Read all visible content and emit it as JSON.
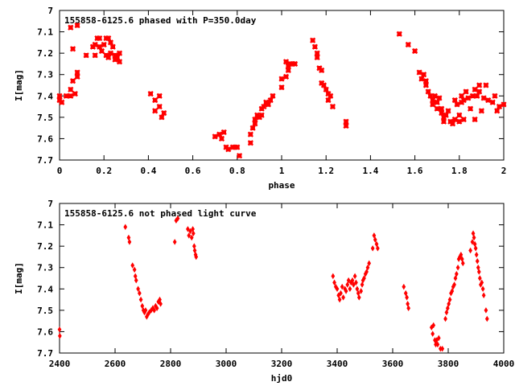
{
  "chart_data": [
    {
      "type": "scatter",
      "title": "155858-6125.6 phased with P=350.0day",
      "xlabel": "phase",
      "ylabel": "I[mag]",
      "xlim": [
        0,
        2
      ],
      "ylim": [
        7,
        7.7
      ],
      "y_inverted": true,
      "grid": false,
      "x_ticks": [
        "0",
        "0.2",
        "0.4",
        "0.6",
        "0.8",
        "1",
        "1.2",
        "1.4",
        "1.6",
        "1.8",
        "2"
      ],
      "y_ticks": [
        "7",
        "7.1",
        "7.2",
        "7.3",
        "7.4",
        "7.5",
        "7.6",
        "7.7"
      ],
      "marker_color": "#ff0000",
      "marker": "x",
      "points": [
        [
          0.0,
          7.42
        ],
        [
          0.0,
          7.4
        ],
        [
          0.01,
          7.43
        ],
        [
          0.03,
          7.4
        ],
        [
          0.05,
          7.37
        ],
        [
          0.05,
          7.4
        ],
        [
          0.05,
          7.08
        ],
        [
          0.06,
          7.18
        ],
        [
          0.06,
          7.33
        ],
        [
          0.07,
          7.39
        ],
        [
          0.08,
          7.07
        ],
        [
          0.08,
          7.29
        ],
        [
          0.08,
          7.31
        ],
        [
          0.12,
          7.21
        ],
        [
          0.15,
          7.17
        ],
        [
          0.16,
          7.16
        ],
        [
          0.16,
          7.21
        ],
        [
          0.17,
          7.13
        ],
        [
          0.18,
          7.13
        ],
        [
          0.18,
          7.17
        ],
        [
          0.19,
          7.19
        ],
        [
          0.2,
          7.16
        ],
        [
          0.21,
          7.13
        ],
        [
          0.21,
          7.21
        ],
        [
          0.22,
          7.13
        ],
        [
          0.22,
          7.22
        ],
        [
          0.23,
          7.15
        ],
        [
          0.23,
          7.2
        ],
        [
          0.24,
          7.17
        ],
        [
          0.25,
          7.21
        ],
        [
          0.25,
          7.23
        ],
        [
          0.26,
          7.22
        ],
        [
          0.27,
          7.2
        ],
        [
          0.27,
          7.24
        ],
        [
          0.41,
          7.39
        ],
        [
          0.43,
          7.42
        ],
        [
          0.43,
          7.47
        ],
        [
          0.45,
          7.4
        ],
        [
          0.45,
          7.45
        ],
        [
          0.46,
          7.5
        ],
        [
          0.47,
          7.48
        ],
        [
          0.7,
          7.59
        ],
        [
          0.72,
          7.58
        ],
        [
          0.73,
          7.6
        ],
        [
          0.74,
          7.57
        ],
        [
          0.75,
          7.64
        ],
        [
          0.76,
          7.65
        ],
        [
          0.78,
          7.64
        ],
        [
          0.79,
          7.64
        ],
        [
          0.8,
          7.64
        ],
        [
          0.81,
          7.68
        ],
        [
          0.86,
          7.62
        ],
        [
          0.86,
          7.58
        ],
        [
          0.87,
          7.55
        ],
        [
          0.88,
          7.51
        ],
        [
          0.88,
          7.53
        ],
        [
          0.89,
          7.49
        ],
        [
          0.9,
          7.5
        ],
        [
          0.91,
          7.49
        ],
        [
          0.91,
          7.46
        ],
        [
          0.92,
          7.45
        ],
        [
          0.93,
          7.43
        ],
        [
          0.94,
          7.44
        ],
        [
          0.95,
          7.42
        ],
        [
          0.96,
          7.4
        ],
        [
          1.0,
          7.32
        ],
        [
          1.0,
          7.36
        ],
        [
          1.02,
          7.31
        ],
        [
          1.02,
          7.24
        ],
        [
          1.03,
          7.26
        ],
        [
          1.03,
          7.28
        ],
        [
          1.04,
          7.25
        ],
        [
          1.05,
          7.25
        ],
        [
          1.06,
          7.25
        ],
        [
          1.14,
          7.14
        ],
        [
          1.15,
          7.17
        ],
        [
          1.16,
          7.2
        ],
        [
          1.16,
          7.22
        ],
        [
          1.17,
          7.27
        ],
        [
          1.18,
          7.28
        ],
        [
          1.18,
          7.34
        ],
        [
          1.19,
          7.35
        ],
        [
          1.2,
          7.37
        ],
        [
          1.21,
          7.39
        ],
        [
          1.21,
          7.42
        ],
        [
          1.22,
          7.4
        ],
        [
          1.23,
          7.45
        ],
        [
          1.29,
          7.52
        ],
        [
          1.29,
          7.54
        ],
        [
          1.53,
          7.11
        ],
        [
          1.57,
          7.16
        ],
        [
          1.6,
          7.19
        ],
        [
          1.62,
          7.29
        ],
        [
          1.63,
          7.32
        ],
        [
          1.64,
          7.3
        ],
        [
          1.65,
          7.33
        ],
        [
          1.65,
          7.35
        ],
        [
          1.66,
          7.38
        ],
        [
          1.67,
          7.4
        ],
        [
          1.68,
          7.42
        ],
        [
          1.68,
          7.44
        ],
        [
          1.69,
          7.4
        ],
        [
          1.7,
          7.43
        ],
        [
          1.7,
          7.46
        ],
        [
          1.71,
          7.41
        ],
        [
          1.72,
          7.46
        ],
        [
          1.72,
          7.48
        ],
        [
          1.73,
          7.52
        ],
        [
          1.73,
          7.5
        ],
        [
          1.74,
          7.49
        ],
        [
          1.75,
          7.47
        ],
        [
          1.76,
          7.52
        ],
        [
          1.77,
          7.53
        ],
        [
          1.78,
          7.51
        ],
        [
          1.78,
          7.42
        ],
        [
          1.79,
          7.44
        ],
        [
          1.8,
          7.49
        ],
        [
          1.8,
          7.52
        ],
        [
          1.81,
          7.4
        ],
        [
          1.81,
          7.43
        ],
        [
          1.82,
          7.42
        ],
        [
          1.82,
          7.51
        ],
        [
          1.83,
          7.38
        ],
        [
          1.84,
          7.41
        ],
        [
          1.85,
          7.46
        ],
        [
          1.86,
          7.4
        ],
        [
          1.87,
          7.37
        ],
        [
          1.87,
          7.51
        ],
        [
          1.88,
          7.4
        ],
        [
          1.89,
          7.35
        ],
        [
          1.89,
          7.38
        ],
        [
          1.9,
          7.47
        ],
        [
          1.91,
          7.41
        ],
        [
          1.92,
          7.35
        ],
        [
          1.93,
          7.42
        ],
        [
          1.95,
          7.43
        ],
        [
          1.96,
          7.4
        ],
        [
          1.97,
          7.47
        ],
        [
          1.98,
          7.45
        ],
        [
          2.0,
          7.44
        ]
      ]
    },
    {
      "type": "scatter",
      "title": "155858-6125.6 not phased light curve",
      "xlabel": "hjd0",
      "ylabel": "I[mag]",
      "xlim": [
        2400,
        4000
      ],
      "ylim": [
        7,
        7.7
      ],
      "y_inverted": true,
      "grid": false,
      "x_ticks": [
        "2400",
        "2600",
        "2800",
        "3000",
        "3200",
        "3400",
        "3600",
        "3800",
        "4000"
      ],
      "y_ticks": [
        "7",
        "7.1",
        "7.2",
        "7.3",
        "7.4",
        "7.5",
        "7.6",
        "7.7"
      ],
      "marker_color": "#ff0000",
      "marker": "diamond",
      "points": [
        [
          2400,
          7.59
        ],
        [
          2401,
          7.62
        ],
        [
          2637,
          7.11
        ],
        [
          2649,
          7.16
        ],
        [
          2652,
          7.18
        ],
        [
          2663,
          7.29
        ],
        [
          2670,
          7.31
        ],
        [
          2673,
          7.34
        ],
        [
          2676,
          7.36
        ],
        [
          2683,
          7.4
        ],
        [
          2688,
          7.42
        ],
        [
          2693,
          7.45
        ],
        [
          2698,
          7.48
        ],
        [
          2702,
          7.5
        ],
        [
          2706,
          7.51
        ],
        [
          2710,
          7.5
        ],
        [
          2714,
          7.53
        ],
        [
          2718,
          7.52
        ],
        [
          2723,
          7.51
        ],
        [
          2730,
          7.5
        ],
        [
          2736,
          7.49
        ],
        [
          2741,
          7.5
        ],
        [
          2746,
          7.48
        ],
        [
          2751,
          7.49
        ],
        [
          2756,
          7.46
        ],
        [
          2761,
          7.45
        ],
        [
          2764,
          7.47
        ],
        [
          2815,
          7.18
        ],
        [
          2820,
          7.08
        ],
        [
          2826,
          7.07
        ],
        [
          2862,
          7.12
        ],
        [
          2866,
          7.15
        ],
        [
          2871,
          7.13
        ],
        [
          2876,
          7.16
        ],
        [
          2880,
          7.12
        ],
        [
          2882,
          7.14
        ],
        [
          2885,
          7.2
        ],
        [
          2887,
          7.22
        ],
        [
          2890,
          7.24
        ],
        [
          2892,
          7.25
        ],
        [
          3385,
          7.34
        ],
        [
          3390,
          7.37
        ],
        [
          3395,
          7.39
        ],
        [
          3400,
          7.4
        ],
        [
          3405,
          7.43
        ],
        [
          3409,
          7.45
        ],
        [
          3413,
          7.42
        ],
        [
          3418,
          7.39
        ],
        [
          3422,
          7.44
        ],
        [
          3428,
          7.4
        ],
        [
          3432,
          7.41
        ],
        [
          3437,
          7.38
        ],
        [
          3441,
          7.36
        ],
        [
          3446,
          7.4
        ],
        [
          3450,
          7.37
        ],
        [
          3455,
          7.36
        ],
        [
          3459,
          7.38
        ],
        [
          3464,
          7.34
        ],
        [
          3468,
          7.37
        ],
        [
          3472,
          7.4
        ],
        [
          3476,
          7.42
        ],
        [
          3479,
          7.44
        ],
        [
          3486,
          7.41
        ],
        [
          3490,
          7.38
        ],
        [
          3493,
          7.36
        ],
        [
          3497,
          7.35
        ],
        [
          3502,
          7.33
        ],
        [
          3506,
          7.32
        ],
        [
          3510,
          7.3
        ],
        [
          3515,
          7.28
        ],
        [
          3528,
          7.21
        ],
        [
          3533,
          7.15
        ],
        [
          3537,
          7.17
        ],
        [
          3542,
          7.19
        ],
        [
          3546,
          7.21
        ],
        [
          3640,
          7.39
        ],
        [
          3647,
          7.42
        ],
        [
          3651,
          7.44
        ],
        [
          3654,
          7.47
        ],
        [
          3657,
          7.49
        ],
        [
          3740,
          7.58
        ],
        [
          3744,
          7.61
        ],
        [
          3747,
          7.57
        ],
        [
          3752,
          7.64
        ],
        [
          3755,
          7.66
        ],
        [
          3758,
          7.64
        ],
        [
          3762,
          7.66
        ],
        [
          3766,
          7.63
        ],
        [
          3772,
          7.68
        ],
        [
          3779,
          7.68
        ],
        [
          3790,
          7.54
        ],
        [
          3794,
          7.51
        ],
        [
          3798,
          7.49
        ],
        [
          3802,
          7.47
        ],
        [
          3806,
          7.45
        ],
        [
          3810,
          7.42
        ],
        [
          3814,
          7.41
        ],
        [
          3818,
          7.39
        ],
        [
          3822,
          7.38
        ],
        [
          3826,
          7.35
        ],
        [
          3830,
          7.33
        ],
        [
          3835,
          7.3
        ],
        [
          3838,
          7.26
        ],
        [
          3842,
          7.25
        ],
        [
          3846,
          7.24
        ],
        [
          3850,
          7.26
        ],
        [
          3853,
          7.28
        ],
        [
          3880,
          7.22
        ],
        [
          3887,
          7.18
        ],
        [
          3890,
          7.14
        ],
        [
          3893,
          7.16
        ],
        [
          3896,
          7.19
        ],
        [
          3899,
          7.21
        ],
        [
          3902,
          7.24
        ],
        [
          3905,
          7.27
        ],
        [
          3908,
          7.3
        ],
        [
          3911,
          7.32
        ],
        [
          3914,
          7.35
        ],
        [
          3917,
          7.38
        ],
        [
          3921,
          7.37
        ],
        [
          3925,
          7.4
        ],
        [
          3928,
          7.43
        ],
        [
          3936,
          7.5
        ],
        [
          3940,
          7.54
        ]
      ]
    }
  ]
}
